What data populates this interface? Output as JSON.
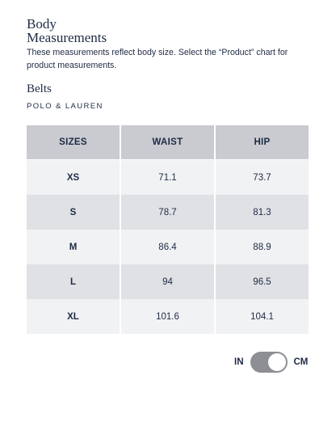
{
  "header": {
    "title": "Body Measurements",
    "description": "These measurements reflect body size. Select the “Product” chart for product measurements."
  },
  "section": {
    "title": "Belts",
    "brand": "POLO & LAUREN"
  },
  "table": {
    "columns": [
      "SIZES",
      "WAIST",
      "HIP"
    ],
    "rows": [
      [
        "XS",
        "71.1",
        "73.7"
      ],
      [
        "S",
        "78.7",
        "81.3"
      ],
      [
        "M",
        "86.4",
        "88.9"
      ],
      [
        "L",
        "94",
        "96.5"
      ],
      [
        "XL",
        "101.6",
        "104.1"
      ]
    ]
  },
  "toggle": {
    "left": "IN",
    "right": "CM"
  }
}
